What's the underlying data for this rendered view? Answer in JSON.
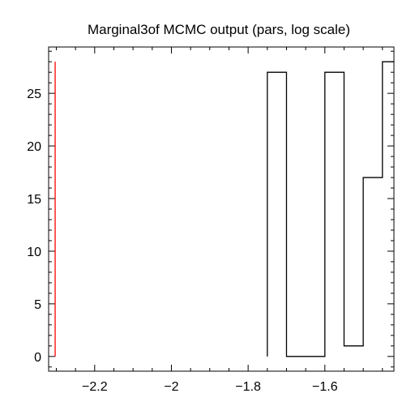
{
  "chart_data": {
    "type": "histogram",
    "title": "Marginal3of MCMC output (pars, log scale)",
    "xlabel": "",
    "ylabel": "",
    "xlim": [
      -2.32,
      -1.42
    ],
    "ylim": [
      -1.4,
      29.4
    ],
    "x_ticks": [
      -2.2,
      -2.0,
      -1.8,
      -1.6
    ],
    "x_tick_labels": [
      "−2.2",
      "−2",
      "−1.8",
      "−1.6"
    ],
    "y_ticks": [
      0,
      5,
      10,
      15,
      20,
      25
    ],
    "y_tick_labels": [
      "0",
      "5",
      "10",
      "15",
      "20",
      "25"
    ],
    "bin_edges": [
      -1.75,
      -1.7,
      -1.65,
      -1.6,
      -1.55,
      -1.5,
      -1.45,
      -1.4
    ],
    "counts": [
      27,
      0,
      0,
      27,
      1,
      17,
      28
    ],
    "reference_line": {
      "x": -2.303,
      "y_range": [
        0,
        28
      ],
      "color": "#ff0000"
    },
    "line_color": "#000000",
    "grid": false
  }
}
